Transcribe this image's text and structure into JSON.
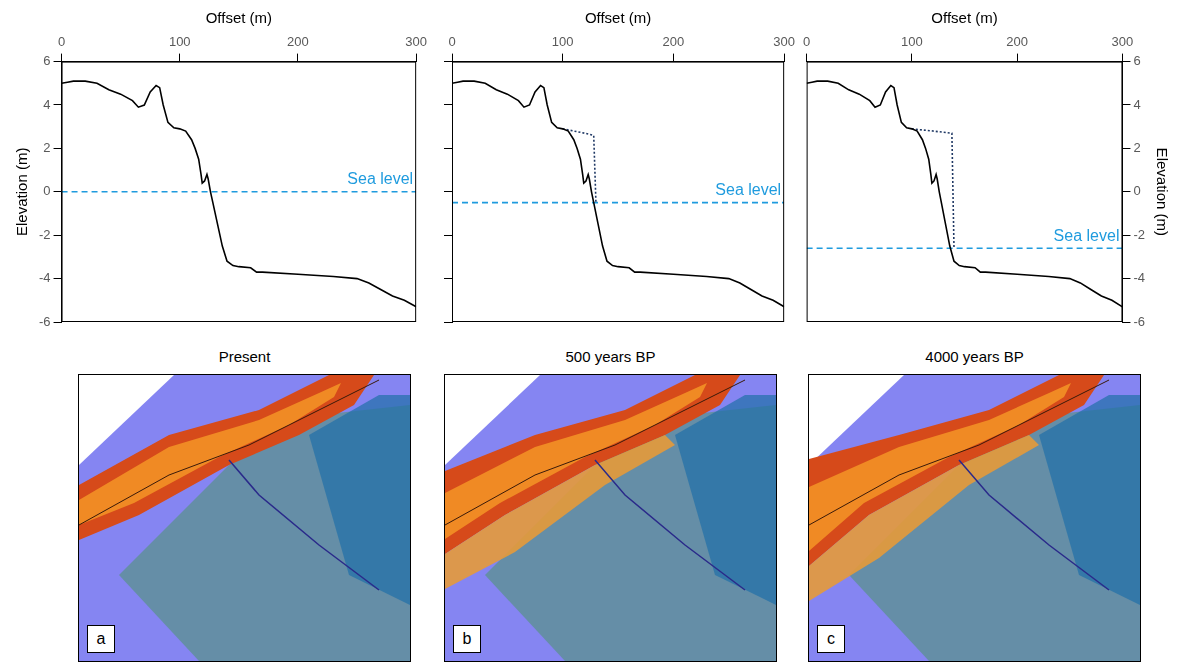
{
  "chart_data": [
    {
      "type": "line",
      "x_label": "Offset (m)",
      "y_label": "Elevation (m)",
      "xlim": [
        0,
        300
      ],
      "xticks": [
        0,
        100,
        200,
        300
      ],
      "ylim": [
        -6,
        6
      ],
      "yticks": [
        -6,
        -4,
        -2,
        0,
        2,
        4,
        6
      ],
      "grid": false,
      "series": [
        {
          "color": "#000000",
          "line_style": "solid",
          "x": [
            0,
            5,
            10,
            20,
            30,
            40,
            50,
            60,
            65,
            70,
            75,
            80,
            83,
            86,
            90,
            95,
            100,
            105,
            110,
            113,
            116,
            118,
            119,
            121,
            123,
            124,
            126,
            128,
            132,
            136,
            140,
            145,
            150,
            160,
            165,
            170,
            200,
            230,
            250,
            260,
            270,
            280,
            290,
            300
          ],
          "values": [
            5.0,
            5.05,
            5.1,
            5.1,
            5.0,
            4.7,
            4.5,
            4.2,
            3.9,
            4.0,
            4.6,
            4.9,
            4.8,
            4.0,
            3.2,
            2.95,
            2.9,
            2.8,
            2.4,
            2.0,
            1.5,
            0.8,
            0.4,
            0.5,
            0.8,
            0.6,
            0.0,
            -0.5,
            -1.5,
            -2.5,
            -3.2,
            -3.4,
            -3.45,
            -3.5,
            -3.7,
            -3.7,
            -3.8,
            -3.9,
            -4.0,
            -4.2,
            -4.5,
            -4.8,
            -5.0,
            -5.3
          ]
        },
        {
          "name": "Sea level",
          "color": "#1f9bde",
          "line_style": "dashed",
          "x": [
            0,
            300
          ],
          "values": [
            0,
            0
          ]
        }
      ]
    },
    {
      "type": "line",
      "x_label": "Offset (m)",
      "xlim": [
        0,
        300
      ],
      "xticks": [
        0,
        100,
        200,
        300
      ],
      "ylim": [
        -6,
        6
      ],
      "yticks": [
        -6,
        -4,
        -2,
        0,
        2,
        4,
        6
      ],
      "grid": false,
      "tick_labels": "x",
      "series": [
        {
          "color": "#000000",
          "line_style": "solid",
          "x": [
            0,
            5,
            10,
            20,
            30,
            40,
            50,
            60,
            65,
            70,
            75,
            80,
            83,
            86,
            90,
            95,
            100,
            105,
            110,
            113,
            116,
            118,
            119,
            121,
            123,
            124,
            126,
            128,
            132,
            136,
            140,
            145,
            150,
            160,
            165,
            170,
            200,
            230,
            250,
            260,
            270,
            280,
            290,
            300
          ],
          "values": [
            5.0,
            5.05,
            5.1,
            5.1,
            5.0,
            4.7,
            4.5,
            4.2,
            3.9,
            4.0,
            4.6,
            4.9,
            4.8,
            4.0,
            3.2,
            2.95,
            2.9,
            2.8,
            2.4,
            2.0,
            1.5,
            0.8,
            0.4,
            0.5,
            0.8,
            0.6,
            0.0,
            -0.5,
            -1.5,
            -2.5,
            -3.2,
            -3.4,
            -3.45,
            -3.5,
            -3.7,
            -3.7,
            -3.8,
            -3.9,
            -4.0,
            -4.2,
            -4.5,
            -4.8,
            -5.0,
            -5.3
          ]
        },
        {
          "color": "#1f3864",
          "line_style": "dotted",
          "x": [
            100,
            110,
            120,
            128,
            130
          ],
          "values": [
            2.9,
            2.8,
            2.7,
            2.6,
            -0.5
          ]
        },
        {
          "name": "Sea level",
          "color": "#1f9bde",
          "line_style": "dashed",
          "x": [
            0,
            300
          ],
          "values": [
            -0.5,
            -0.5
          ]
        }
      ]
    },
    {
      "type": "line",
      "x_label": "Offset (m)",
      "y_label": "Elevation (m)",
      "xlim": [
        0,
        300
      ],
      "xticks": [
        0,
        100,
        200,
        300
      ],
      "ylim": [
        -6,
        6
      ],
      "yticks": [
        -6,
        -4,
        -2,
        0,
        2,
        4,
        6
      ],
      "grid": false,
      "series": [
        {
          "color": "#000000",
          "line_style": "solid",
          "x": [
            0,
            5,
            10,
            20,
            30,
            40,
            50,
            60,
            65,
            70,
            75,
            80,
            83,
            86,
            90,
            95,
            100,
            105,
            110,
            113,
            116,
            118,
            119,
            121,
            123,
            124,
            126,
            128,
            132,
            136,
            140,
            145,
            150,
            160,
            165,
            170,
            200,
            230,
            250,
            260,
            270,
            280,
            290,
            300
          ],
          "values": [
            5.0,
            5.05,
            5.1,
            5.1,
            5.0,
            4.7,
            4.5,
            4.2,
            3.9,
            4.0,
            4.6,
            4.9,
            4.8,
            4.0,
            3.2,
            2.95,
            2.9,
            2.8,
            2.4,
            2.0,
            1.5,
            0.8,
            0.4,
            0.5,
            0.8,
            0.6,
            0.0,
            -0.5,
            -1.5,
            -2.5,
            -3.2,
            -3.4,
            -3.45,
            -3.5,
            -3.7,
            -3.7,
            -3.8,
            -3.9,
            -4.0,
            -4.2,
            -4.5,
            -4.8,
            -5.0,
            -5.3
          ]
        },
        {
          "color": "#1f3864",
          "line_style": "dotted",
          "x": [
            100,
            120,
            138,
            140
          ],
          "values": [
            2.9,
            2.8,
            2.7,
            -2.6
          ]
        },
        {
          "name": "Sea level",
          "color": "#1f9bde",
          "line_style": "dashed",
          "x": [
            0,
            300
          ],
          "values": [
            -2.6,
            -2.6
          ]
        }
      ]
    }
  ],
  "images": [
    {
      "title": "Present",
      "letter": "a"
    },
    {
      "title": "500 years BP",
      "letter": "b"
    },
    {
      "title": "4000 years BP",
      "letter": "c"
    }
  ]
}
